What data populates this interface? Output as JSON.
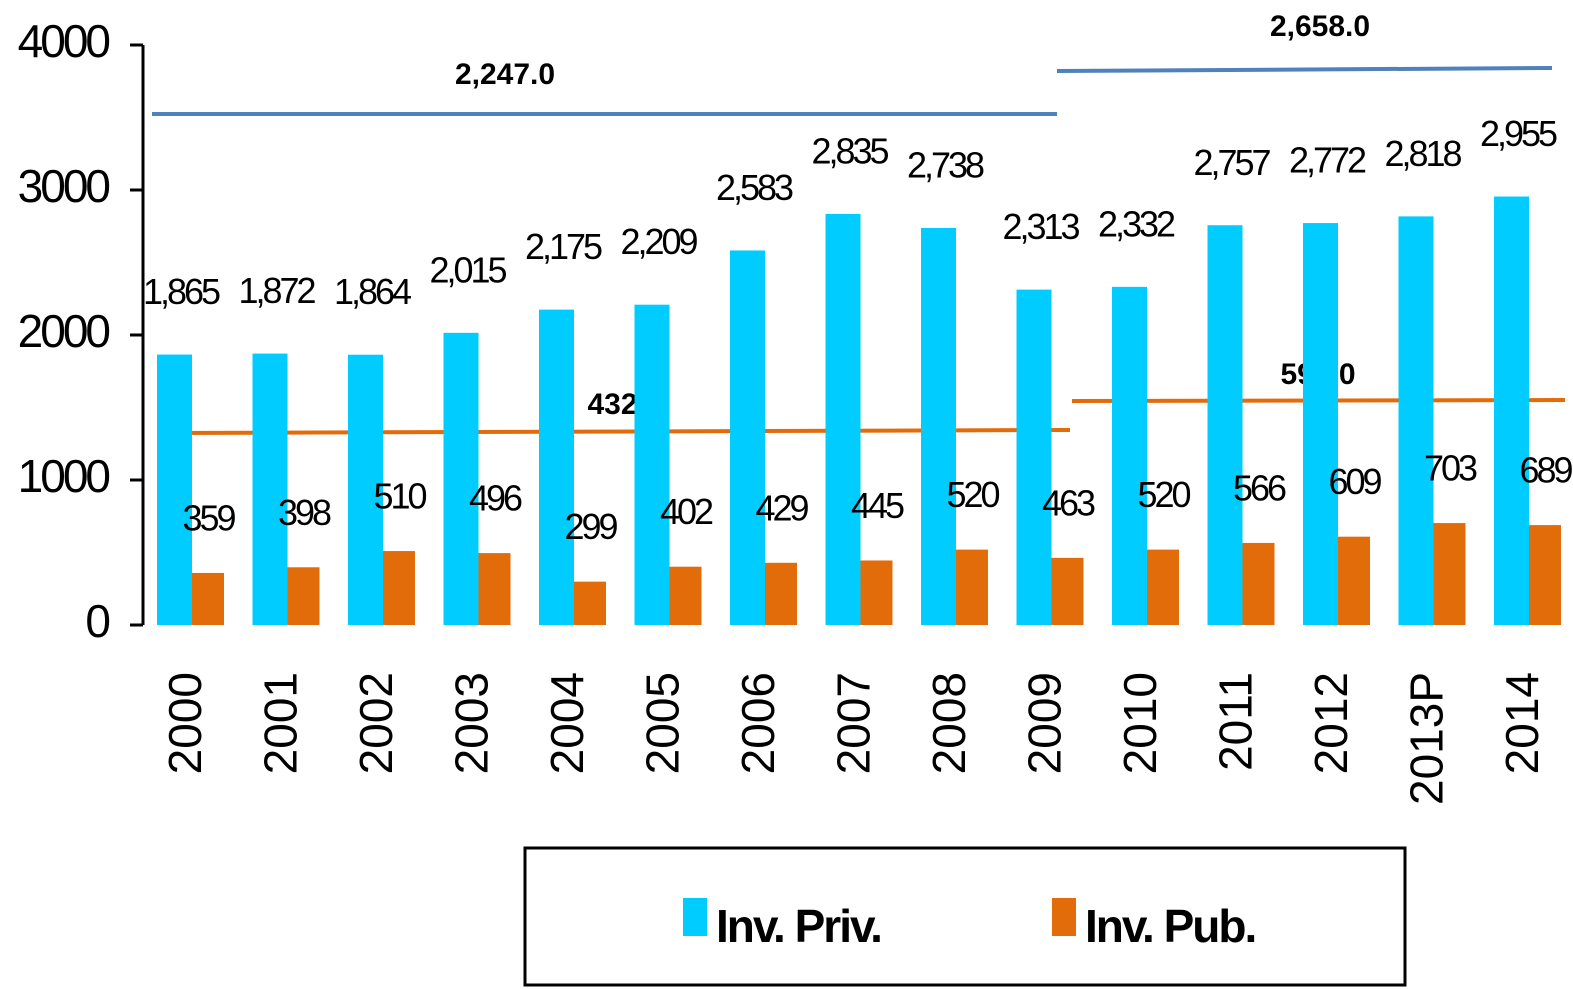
{
  "chart_data": {
    "type": "bar",
    "categories": [
      "2000",
      "2001",
      "2002",
      "2003",
      "2004",
      "2005",
      "2006",
      "2007",
      "2008",
      "2009",
      "2010",
      "2011",
      "2012",
      "2013P",
      "2014"
    ],
    "series": [
      {
        "name": "Inv. Priv.",
        "color": "#00ccff",
        "values": [
          1865,
          1872,
          1864,
          2015,
          2175,
          2209,
          2583,
          2835,
          2738,
          2313,
          2332,
          2757,
          2772,
          2818,
          2955
        ],
        "value_labels": [
          "1,865",
          "1,872",
          "1,864",
          "2,015",
          "2,175",
          "2,209",
          "2,583",
          "2,835",
          "2,738",
          "2,313",
          "2,332",
          "2,757",
          "2,772",
          "2,818",
          "2,955"
        ]
      },
      {
        "name": "Inv. Pub.",
        "color": "#e36c0a",
        "values": [
          359,
          398,
          510,
          496,
          299,
          402,
          429,
          445,
          520,
          463,
          520,
          566,
          609,
          703,
          689
        ]
      }
    ],
    "annotations": [
      "2,247.0",
      "2,658.0",
      "432.0",
      "592.0"
    ],
    "ylim": [
      0,
      4000
    ],
    "yticks": [
      0,
      1000,
      2000,
      3000,
      4000
    ],
    "grid": false
  }
}
